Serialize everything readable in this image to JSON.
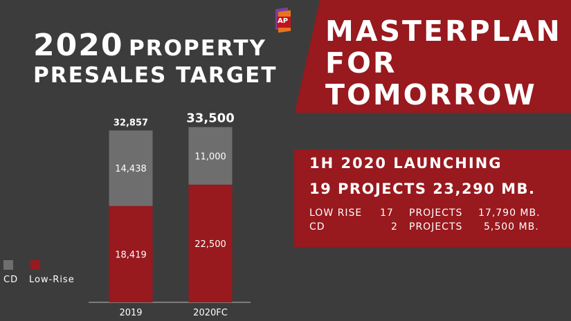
{
  "left_title": {
    "year": "2020",
    "word1": "PROPERTY",
    "line2": "PRESALES TARGET"
  },
  "logo": {
    "text": "AP"
  },
  "banner": {
    "lines": [
      "MASTERPLAN",
      "FOR",
      "TOMORROW"
    ],
    "color": "#98191e"
  },
  "launching": {
    "heading": "1H 2020 LAUNCHING",
    "summary": "19 PROJECTS 23,290 MB.",
    "rows": [
      {
        "label": "LOW RISE",
        "count": "17",
        "unit": "PROJECTS",
        "value": "17,790 MB."
      },
      {
        "label": "CD",
        "count": "2",
        "unit": "PROJECTS",
        "value": "5,500 MB."
      }
    ]
  },
  "legend": [
    {
      "name": "CD",
      "color": "#6e6e6e"
    },
    {
      "name": "Low-Rise",
      "color": "#98191e"
    }
  ],
  "chart_data": {
    "type": "bar",
    "stacked": true,
    "categories": [
      "2019",
      "2020FC"
    ],
    "series": [
      {
        "name": "Low-Rise",
        "values": [
          18419,
          22500
        ],
        "labels": [
          "18,419",
          "22,500"
        ],
        "color": "#98191e"
      },
      {
        "name": "CD",
        "values": [
          14438,
          11000
        ],
        "labels": [
          "14,438",
          "11,000"
        ],
        "color": "#6e6e6e"
      }
    ],
    "totals": [
      32857,
      33500
    ],
    "total_labels": [
      "32,857",
      "33,500"
    ],
    "legend_position": "bottom-left"
  }
}
